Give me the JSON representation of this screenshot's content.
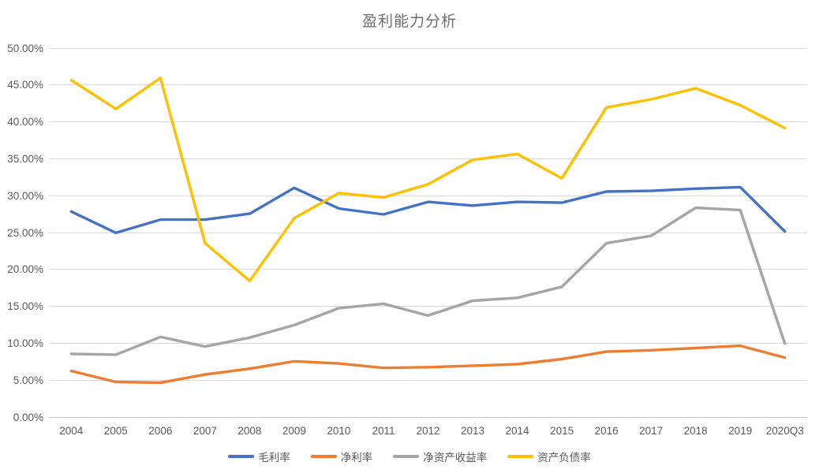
{
  "title": "盈利能力分析",
  "colors": {
    "title_text": "#6e6e6e",
    "axis_text": "#595959",
    "gridline": "#d9d9d9",
    "axis_line": "#bfbfbf",
    "series_blue": "#4472C4",
    "series_orange": "#ED7D31",
    "series_gray": "#A5A5A5",
    "series_yellow": "#FFC000"
  },
  "chart_data": {
    "type": "line",
    "title": "盈利能力分析",
    "categories": [
      "2004",
      "2005",
      "2006",
      "2007",
      "2008",
      "2009",
      "2010",
      "2011",
      "2012",
      "2013",
      "2014",
      "2015",
      "2016",
      "2017",
      "2018",
      "2019",
      "2020Q3"
    ],
    "series": [
      {
        "name": "毛利率",
        "color": "#4472C4",
        "values": [
          27.8,
          24.9,
          26.7,
          26.7,
          27.5,
          31.0,
          28.2,
          27.4,
          29.1,
          28.6,
          29.1,
          29.0,
          30.5,
          30.6,
          30.9,
          31.1,
          25.1
        ]
      },
      {
        "name": "净利率",
        "color": "#ED7D31",
        "values": [
          6.2,
          4.7,
          4.6,
          5.7,
          6.5,
          7.5,
          7.2,
          6.6,
          6.7,
          6.9,
          7.1,
          7.8,
          8.8,
          9.0,
          9.3,
          9.6,
          8.0
        ]
      },
      {
        "name": "净资产收益率",
        "color": "#A5A5A5",
        "values": [
          8.5,
          8.4,
          10.8,
          9.5,
          10.7,
          12.4,
          14.7,
          15.3,
          13.7,
          15.7,
          16.1,
          17.6,
          23.5,
          24.5,
          28.3,
          28.0,
          9.9
        ]
      },
      {
        "name": "资产负债率",
        "color": "#FFC000",
        "values": [
          45.6,
          41.7,
          45.9,
          23.5,
          18.4,
          26.9,
          30.3,
          29.7,
          31.5,
          34.8,
          35.6,
          32.3,
          41.9,
          43.0,
          44.5,
          42.2,
          39.1
        ]
      }
    ],
    "ylim": [
      0,
      50
    ],
    "y_tick_step": 5,
    "y_tick_labels": [
      "0.00%",
      "5.00%",
      "10.00%",
      "15.00%",
      "20.00%",
      "25.00%",
      "30.00%",
      "35.00%",
      "40.00%",
      "45.00%",
      "50.00%"
    ],
    "grid": true,
    "legend_position": "bottom"
  }
}
